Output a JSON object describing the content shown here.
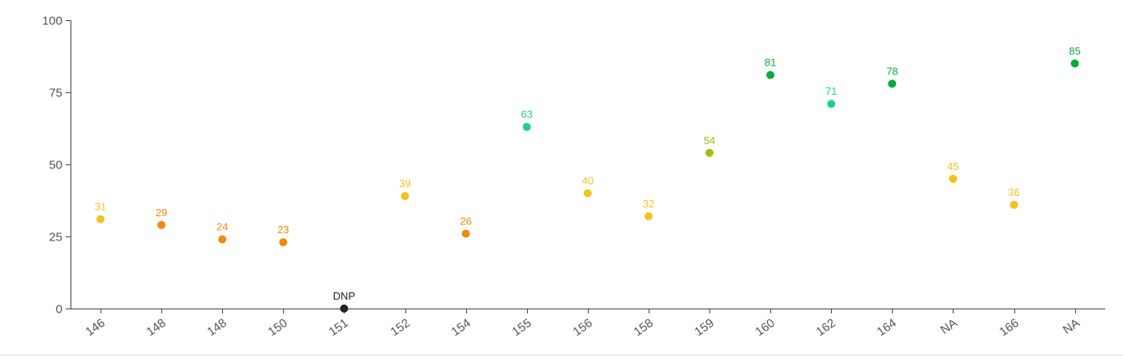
{
  "chart_data": {
    "type": "scatter",
    "title": "",
    "xlabel": "",
    "ylabel": "",
    "ylim": [
      0,
      100
    ],
    "yticks": [
      0,
      25,
      50,
      75,
      100
    ],
    "grid": false,
    "legend": "none",
    "categories": [
      "146",
      "148",
      "148",
      "150",
      "151",
      "152",
      "154",
      "155",
      "156",
      "158",
      "159",
      "160",
      "162",
      "164",
      "NA",
      "166",
      "NA"
    ],
    "values": [
      31,
      29,
      24,
      23,
      0,
      39,
      26,
      63,
      40,
      32,
      54,
      81,
      71,
      78,
      45,
      36,
      85
    ],
    "labels": [
      "31",
      "29",
      "24",
      "23",
      "DNP",
      "39",
      "26",
      "63",
      "40",
      "32",
      "54",
      "81",
      "71",
      "78",
      "45",
      "36",
      "85"
    ],
    "point_colors": [
      "#f2c31d",
      "#f08a0e",
      "#f08a0e",
      "#f08a0e",
      "#222222",
      "#f2c31d",
      "#f08a0e",
      "#1fcf8f",
      "#f2c31d",
      "#f2c31d",
      "#9cc20c",
      "#0aab3c",
      "#1fcf8f",
      "#0aab3c",
      "#f2c31d",
      "#f2c31d",
      "#0aab3c"
    ]
  },
  "colors": {
    "axis": "#444444",
    "tick_text": "#555555",
    "divider": "#e2e2e2"
  }
}
